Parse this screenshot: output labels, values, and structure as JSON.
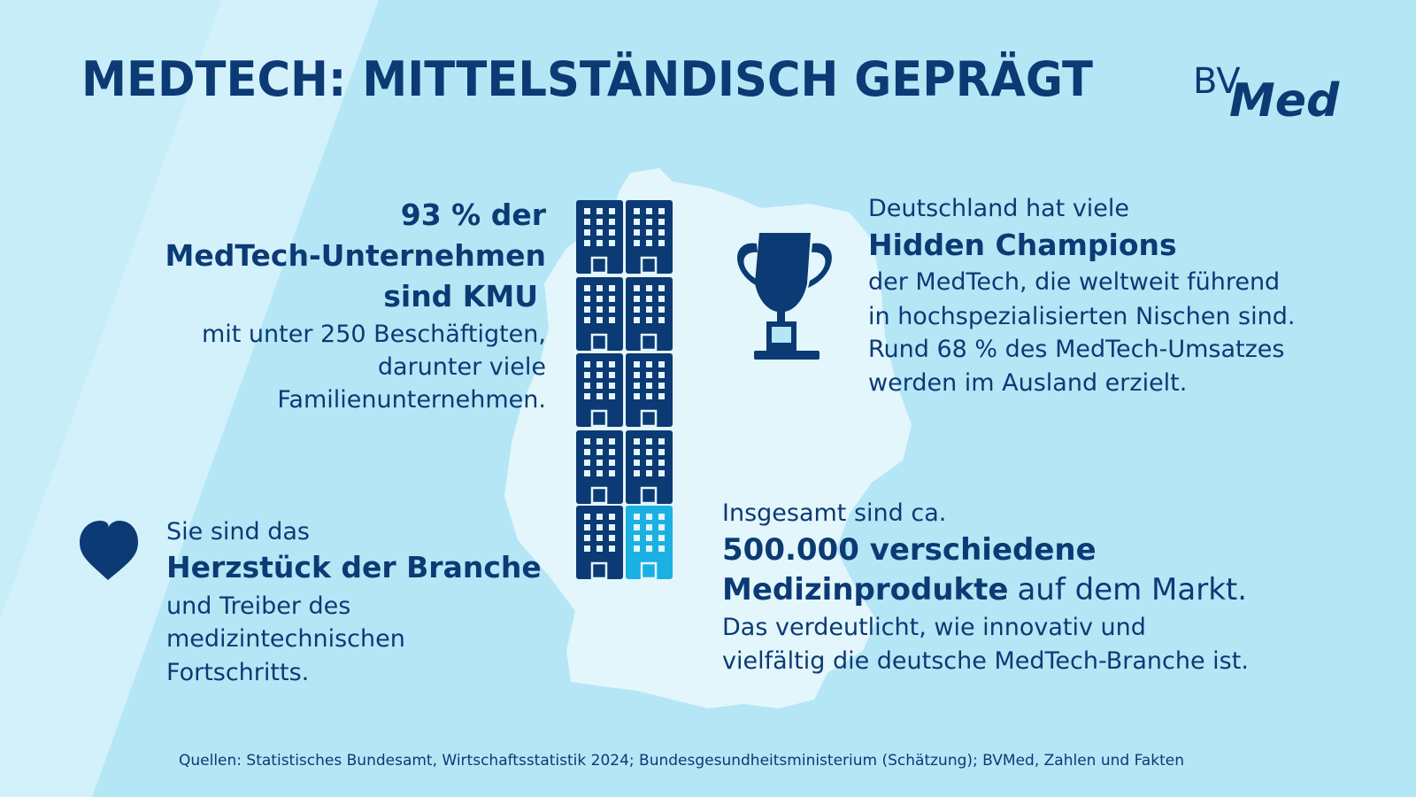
{
  "header": {
    "title": "MEDTECH: MITTELSTÄNDISCH GEPRÄGT",
    "logo": {
      "prefix": "BV",
      "name": "Med"
    }
  },
  "kmu": {
    "headline": [
      "93 % der",
      "MedTech-Unternehmen",
      "sind KMU"
    ],
    "body": [
      "mit unter 250 Beschäftigten,",
      "darunter viele",
      "Familienunternehmen."
    ]
  },
  "champions": {
    "intro": "Deutschland hat viele",
    "highlight": "Hidden Champions",
    "body": [
      "der MedTech, die weltweit führend",
      "in hochspezialisierten Nischen sind.",
      "Rund 68 % des MedTech-Umsatzes",
      "werden im Ausland erzielt."
    ]
  },
  "heart": {
    "intro": "Sie sind das",
    "highlight": "Herzstück der Branche",
    "body": [
      "und Treiber des",
      "medizintechnischen",
      "Fortschritts."
    ]
  },
  "products": {
    "intro": "Insgesamt sind ca.",
    "highlight": [
      "500.000 verschiedene",
      "Medizinprodukte"
    ],
    "highlight_suffix": "auf dem Markt.",
    "body": [
      "Das verdeutlicht, wie innovativ und",
      "vielfältig die deutsche MedTech-Branche ist."
    ]
  },
  "footer": {
    "source": "Quellen: Statistisches Bundesamt, Wirtschaftsstatistik 2024; Bundesgesundheitsministerium (Schätzung); BVMed, Zahlen und Fakten"
  }
}
